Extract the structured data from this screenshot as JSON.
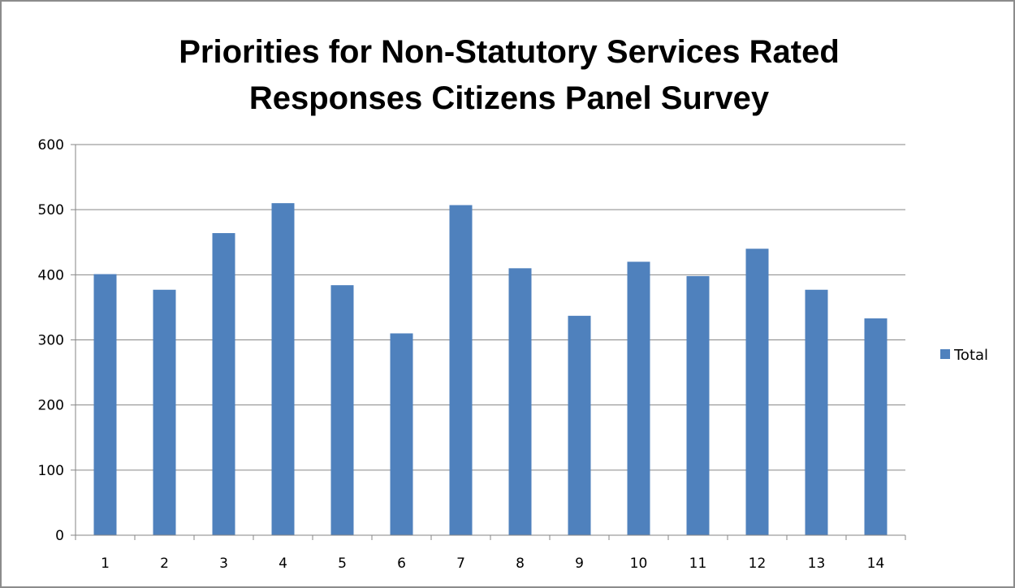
{
  "chart_data": {
    "type": "bar",
    "title_lines": [
      "Priorities for Non-Statutory Services Rated",
      "Responses Citizens Panel Survey"
    ],
    "categories": [
      "1",
      "2",
      "3",
      "4",
      "5",
      "6",
      "7",
      "8",
      "9",
      "10",
      "11",
      "12",
      "13",
      "14"
    ],
    "series": [
      {
        "name": "Total",
        "color": "#4f81bd",
        "values": [
          401,
          377,
          464,
          510,
          384,
          310,
          507,
          410,
          337,
          420,
          398,
          440,
          377,
          333
        ]
      }
    ],
    "ylim": [
      0,
      600
    ],
    "yticks": [
      "0",
      "100",
      "200",
      "300",
      "400",
      "500",
      "600"
    ],
    "grid": true,
    "legend": "right"
  }
}
